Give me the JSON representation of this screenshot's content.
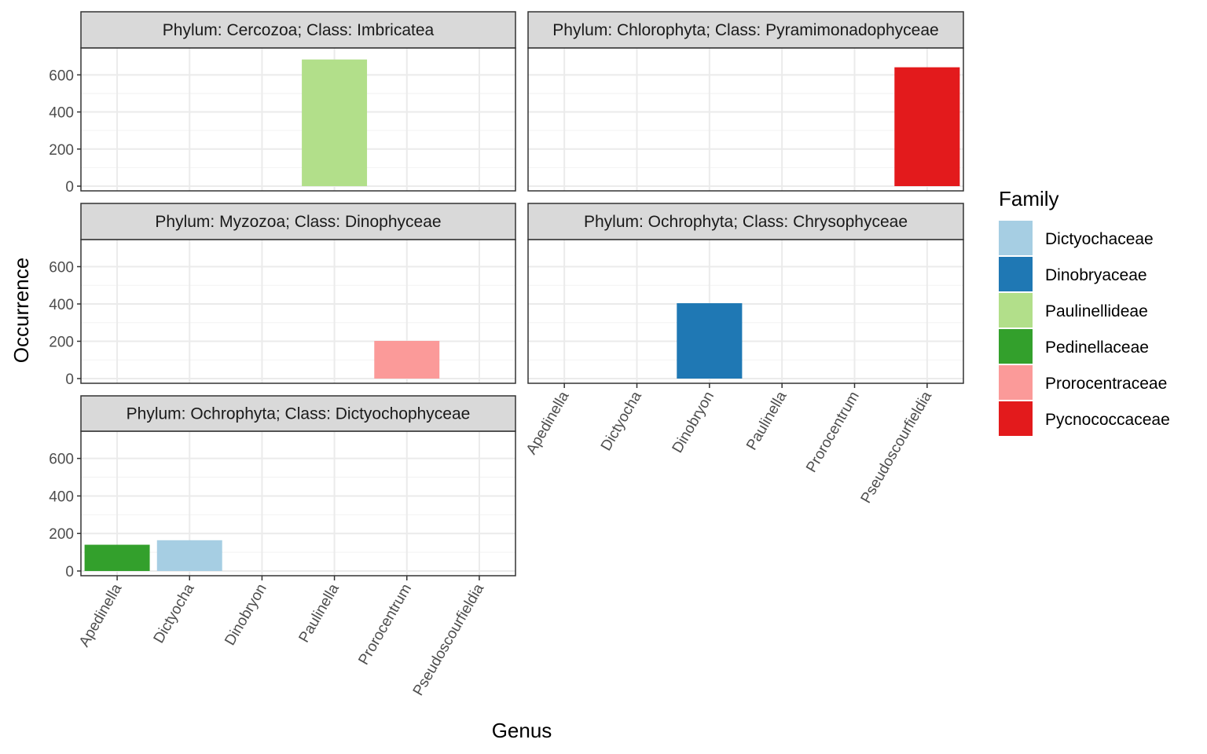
{
  "chart_data": {
    "type": "bar",
    "title": "",
    "xlabel": "Genus",
    "ylabel": "Occurrence",
    "ylim": [
      0,
      720
    ],
    "yticks": [
      0,
      200,
      400,
      600
    ],
    "categories": [
      "Apedinella",
      "Dictyocha",
      "Dinobryon",
      "Paulinella",
      "Prorocentrum",
      "Pseudoscourfieldia"
    ],
    "legend": {
      "title": "Family",
      "position": "right",
      "entries": [
        {
          "name": "Dictyochaceae",
          "color": "#A6CEE3"
        },
        {
          "name": "Dinobryaceae",
          "color": "#1F78B4"
        },
        {
          "name": "Paulinellideae",
          "color": "#B2DF8A"
        },
        {
          "name": "Pedinellaceae",
          "color": "#33A02C"
        },
        {
          "name": "Prorocentraceae",
          "color": "#FB9A99"
        },
        {
          "name": "Pycnococcaceae",
          "color": "#E31A1C"
        }
      ]
    },
    "grid": true,
    "panels": [
      {
        "label": "Phylum: Cercozoa; Class: Imbricatea",
        "bars": [
          {
            "genus": "Paulinella",
            "family": "Paulinellideae",
            "value": 683
          }
        ]
      },
      {
        "label": "Phylum: Chlorophyta; Class: Pyramimonadophyceae",
        "bars": [
          {
            "genus": "Pseudoscourfieldia",
            "family": "Pycnococcaceae",
            "value": 641
          }
        ]
      },
      {
        "label": "Phylum: Myzozoa; Class: Dinophyceae",
        "bars": [
          {
            "genus": "Prorocentrum",
            "family": "Prorocentraceae",
            "value": 202
          }
        ]
      },
      {
        "label": "Phylum: Ochrophyta; Class: Chrysophyceae",
        "bars": [
          {
            "genus": "Dinobryon",
            "family": "Dinobryaceae",
            "value": 404
          }
        ]
      },
      {
        "label": "Phylum: Ochrophyta; Class: Dictyochophyceae",
        "bars": [
          {
            "genus": "Apedinella",
            "family": "Pedinellaceae",
            "value": 140
          },
          {
            "genus": "Dictyocha",
            "family": "Dictyochaceae",
            "value": 164
          }
        ]
      }
    ]
  }
}
